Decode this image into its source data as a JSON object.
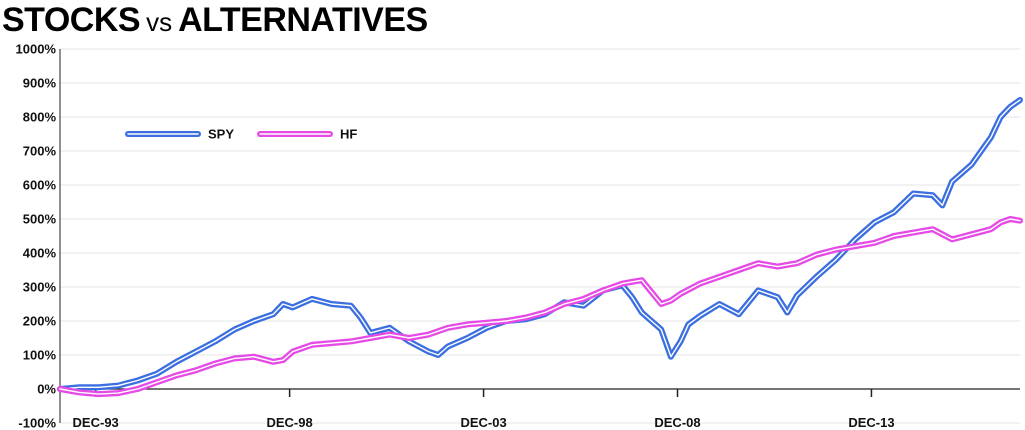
{
  "title": {
    "part1": "STOCKS",
    "part2": "vs",
    "part3": "ALTERNATIVES"
  },
  "colors": {
    "spy": "#3b6fe0",
    "hf": "#e64ae6",
    "grid": "#e6e6e6",
    "axis": "#222222"
  },
  "chart_data": {
    "type": "line",
    "title": "STOCKS vs ALTERNATIVES",
    "xlabel": "",
    "ylabel": "",
    "ylim": [
      -100,
      1000
    ],
    "yticks": [
      -100,
      0,
      100,
      200,
      300,
      400,
      500,
      600,
      700,
      800,
      900,
      1000
    ],
    "ytick_labels": [
      "-100%",
      "0%",
      "100%",
      "200%",
      "300%",
      "400%",
      "500%",
      "600%",
      "700%",
      "800%",
      "900%",
      "1000%"
    ],
    "xlim": [
      1993.0,
      2017.75
    ],
    "xticks": [
      1993.92,
      1998.92,
      2003.92,
      2008.92,
      2013.92
    ],
    "xtick_labels": [
      "DEC-93",
      "DEC-98",
      "DEC-03",
      "DEC-08",
      "DEC-13"
    ],
    "grid": "horizontal",
    "legend_position": "upper-left",
    "series": [
      {
        "name": "SPY",
        "color": "#3b6fe0",
        "x": [
          1993.0,
          1993.5,
          1994.0,
          1994.5,
          1995.0,
          1995.5,
          1996.0,
          1996.5,
          1997.0,
          1997.5,
          1998.0,
          1998.5,
          1998.75,
          1999.0,
          1999.5,
          2000.0,
          2000.5,
          2000.75,
          2001.0,
          2001.5,
          2002.0,
          2002.5,
          2002.75,
          2003.0,
          2003.5,
          2004.0,
          2004.5,
          2005.0,
          2005.5,
          2006.0,
          2006.5,
          2007.0,
          2007.5,
          2007.75,
          2008.0,
          2008.5,
          2008.75,
          2009.0,
          2009.2,
          2009.5,
          2010.0,
          2010.5,
          2011.0,
          2011.5,
          2011.75,
          2012.0,
          2012.5,
          2013.0,
          2013.5,
          2014.0,
          2014.5,
          2015.0,
          2015.5,
          2015.75,
          2016.0,
          2016.5,
          2017.0,
          2017.25,
          2017.5,
          2017.75
        ],
        "y": [
          0,
          5,
          5,
          10,
          25,
          45,
          80,
          110,
          140,
          175,
          200,
          220,
          250,
          240,
          265,
          250,
          245,
          210,
          165,
          180,
          140,
          110,
          100,
          125,
          150,
          180,
          200,
          205,
          220,
          255,
          245,
          290,
          305,
          270,
          225,
          175,
          95,
          140,
          190,
          215,
          250,
          220,
          290,
          270,
          225,
          275,
          330,
          380,
          440,
          490,
          520,
          575,
          570,
          540,
          610,
          660,
          740,
          800,
          830,
          850
        ]
      },
      {
        "name": "HF",
        "color": "#e64ae6",
        "x": [
          1993.0,
          1993.5,
          1994.0,
          1994.5,
          1995.0,
          1995.5,
          1996.0,
          1996.5,
          1997.0,
          1997.5,
          1998.0,
          1998.5,
          1998.75,
          1999.0,
          1999.5,
          2000.0,
          2000.5,
          2001.0,
          2001.5,
          2002.0,
          2002.5,
          2003.0,
          2003.5,
          2004.0,
          2004.5,
          2005.0,
          2005.5,
          2006.0,
          2006.5,
          2007.0,
          2007.5,
          2008.0,
          2008.5,
          2008.75,
          2009.0,
          2009.5,
          2010.0,
          2010.5,
          2011.0,
          2011.5,
          2012.0,
          2012.5,
          2013.0,
          2013.5,
          2014.0,
          2014.5,
          2015.0,
          2015.5,
          2016.0,
          2016.5,
          2017.0,
          2017.25,
          2017.5,
          2017.75
        ],
        "y": [
          0,
          -10,
          -15,
          -12,
          0,
          20,
          40,
          55,
          75,
          90,
          95,
          80,
          85,
          110,
          130,
          135,
          140,
          150,
          160,
          150,
          160,
          180,
          190,
          195,
          200,
          210,
          225,
          250,
          265,
          290,
          310,
          320,
          250,
          260,
          280,
          310,
          330,
          350,
          370,
          360,
          370,
          395,
          410,
          420,
          430,
          450,
          460,
          470,
          440,
          455,
          470,
          490,
          500,
          495
        ]
      }
    ]
  }
}
